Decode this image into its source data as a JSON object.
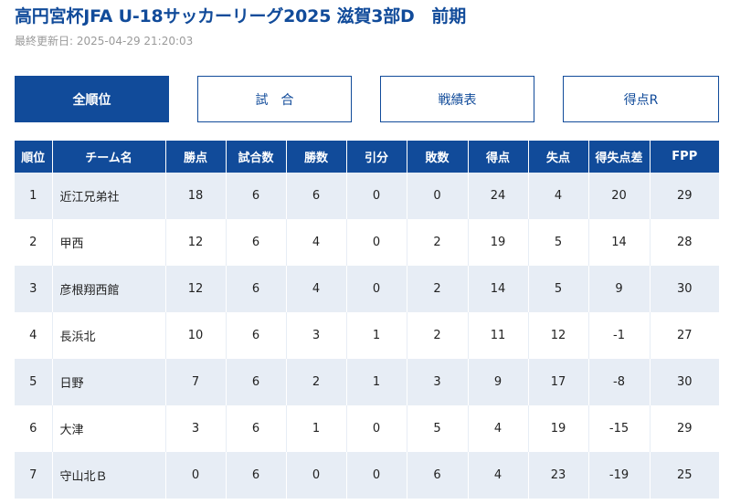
{
  "header": {
    "title": "高円宮杯JFA U-18サッカーリーグ2025 滋賀3部D　前期",
    "updated": "最終更新日: 2025-04-29 21:20:03"
  },
  "tabs": [
    {
      "label": "全順位",
      "active": true
    },
    {
      "label": "試合",
      "active": false
    },
    {
      "label": "戦績表",
      "active": false
    },
    {
      "label": "得点R",
      "active": false
    }
  ],
  "table": {
    "columns": [
      "順位",
      "チーム名",
      "勝点",
      "試合数",
      "勝数",
      "引分",
      "敗数",
      "得点",
      "失点",
      "得失点差",
      "FPP"
    ],
    "rows": [
      [
        "1",
        "近江兄弟社",
        "18",
        "6",
        "6",
        "0",
        "0",
        "24",
        "4",
        "20",
        "29"
      ],
      [
        "2",
        "甲西",
        "12",
        "6",
        "4",
        "0",
        "2",
        "19",
        "5",
        "14",
        "28"
      ],
      [
        "3",
        "彦根翔西館",
        "12",
        "6",
        "4",
        "0",
        "2",
        "14",
        "5",
        "9",
        "30"
      ],
      [
        "4",
        "長浜北",
        "10",
        "6",
        "3",
        "1",
        "2",
        "11",
        "12",
        "-1",
        "27"
      ],
      [
        "5",
        "日野",
        "7",
        "6",
        "2",
        "1",
        "3",
        "9",
        "17",
        "-8",
        "30"
      ],
      [
        "6",
        "大津",
        "3",
        "6",
        "1",
        "0",
        "5",
        "4",
        "19",
        "-15",
        "29"
      ],
      [
        "7",
        "守山北Ｂ",
        "0",
        "6",
        "0",
        "0",
        "6",
        "4",
        "23",
        "-19",
        "25"
      ]
    ]
  }
}
